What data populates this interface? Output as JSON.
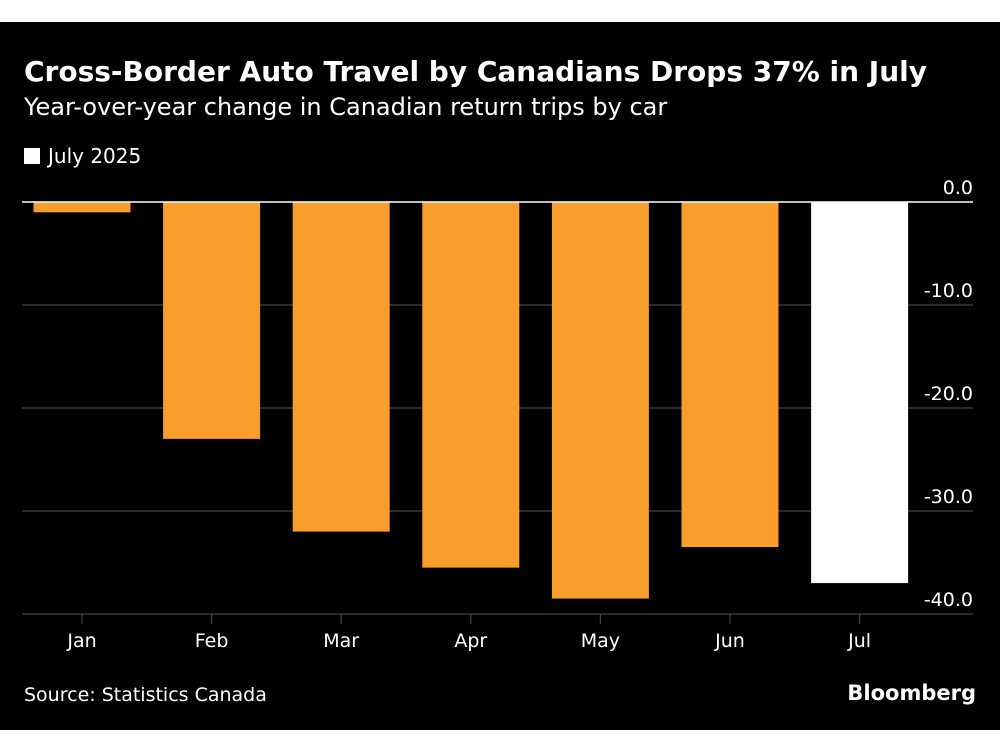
{
  "chart_data": {
    "type": "bar",
    "title": "Cross-Border Auto Travel by Canadians Drops 37% in July",
    "subtitle": "Year-over-year change in Canadian return trips by car",
    "categories": [
      "Jan",
      "Feb",
      "Mar",
      "Apr",
      "May",
      "Jun",
      "Jul"
    ],
    "values": [
      -1.0,
      -23.0,
      -32.0,
      -35.5,
      -38.5,
      -33.5,
      -37.0
    ],
    "highlight_index": 6,
    "legend": [
      {
        "label": "July 2025",
        "color": "#ffffff"
      }
    ],
    "ylim": [
      -40,
      0
    ],
    "yticks": [
      0,
      -10,
      -20,
      -30,
      -40
    ],
    "ytick_labels": [
      "0.0",
      "-10.0",
      "-20.0",
      "-30.0",
      "-40.0"
    ],
    "y_axis_side": "right",
    "grid": true,
    "colors": {
      "bar": "#f99e2a",
      "highlight": "#ffffff",
      "grid": "#444444",
      "zero_line": "#ffffff",
      "text": "#ffffff",
      "background": "#000000"
    }
  },
  "footer": {
    "source": "Source: Statistics Canada",
    "brand": "Bloomberg"
  }
}
